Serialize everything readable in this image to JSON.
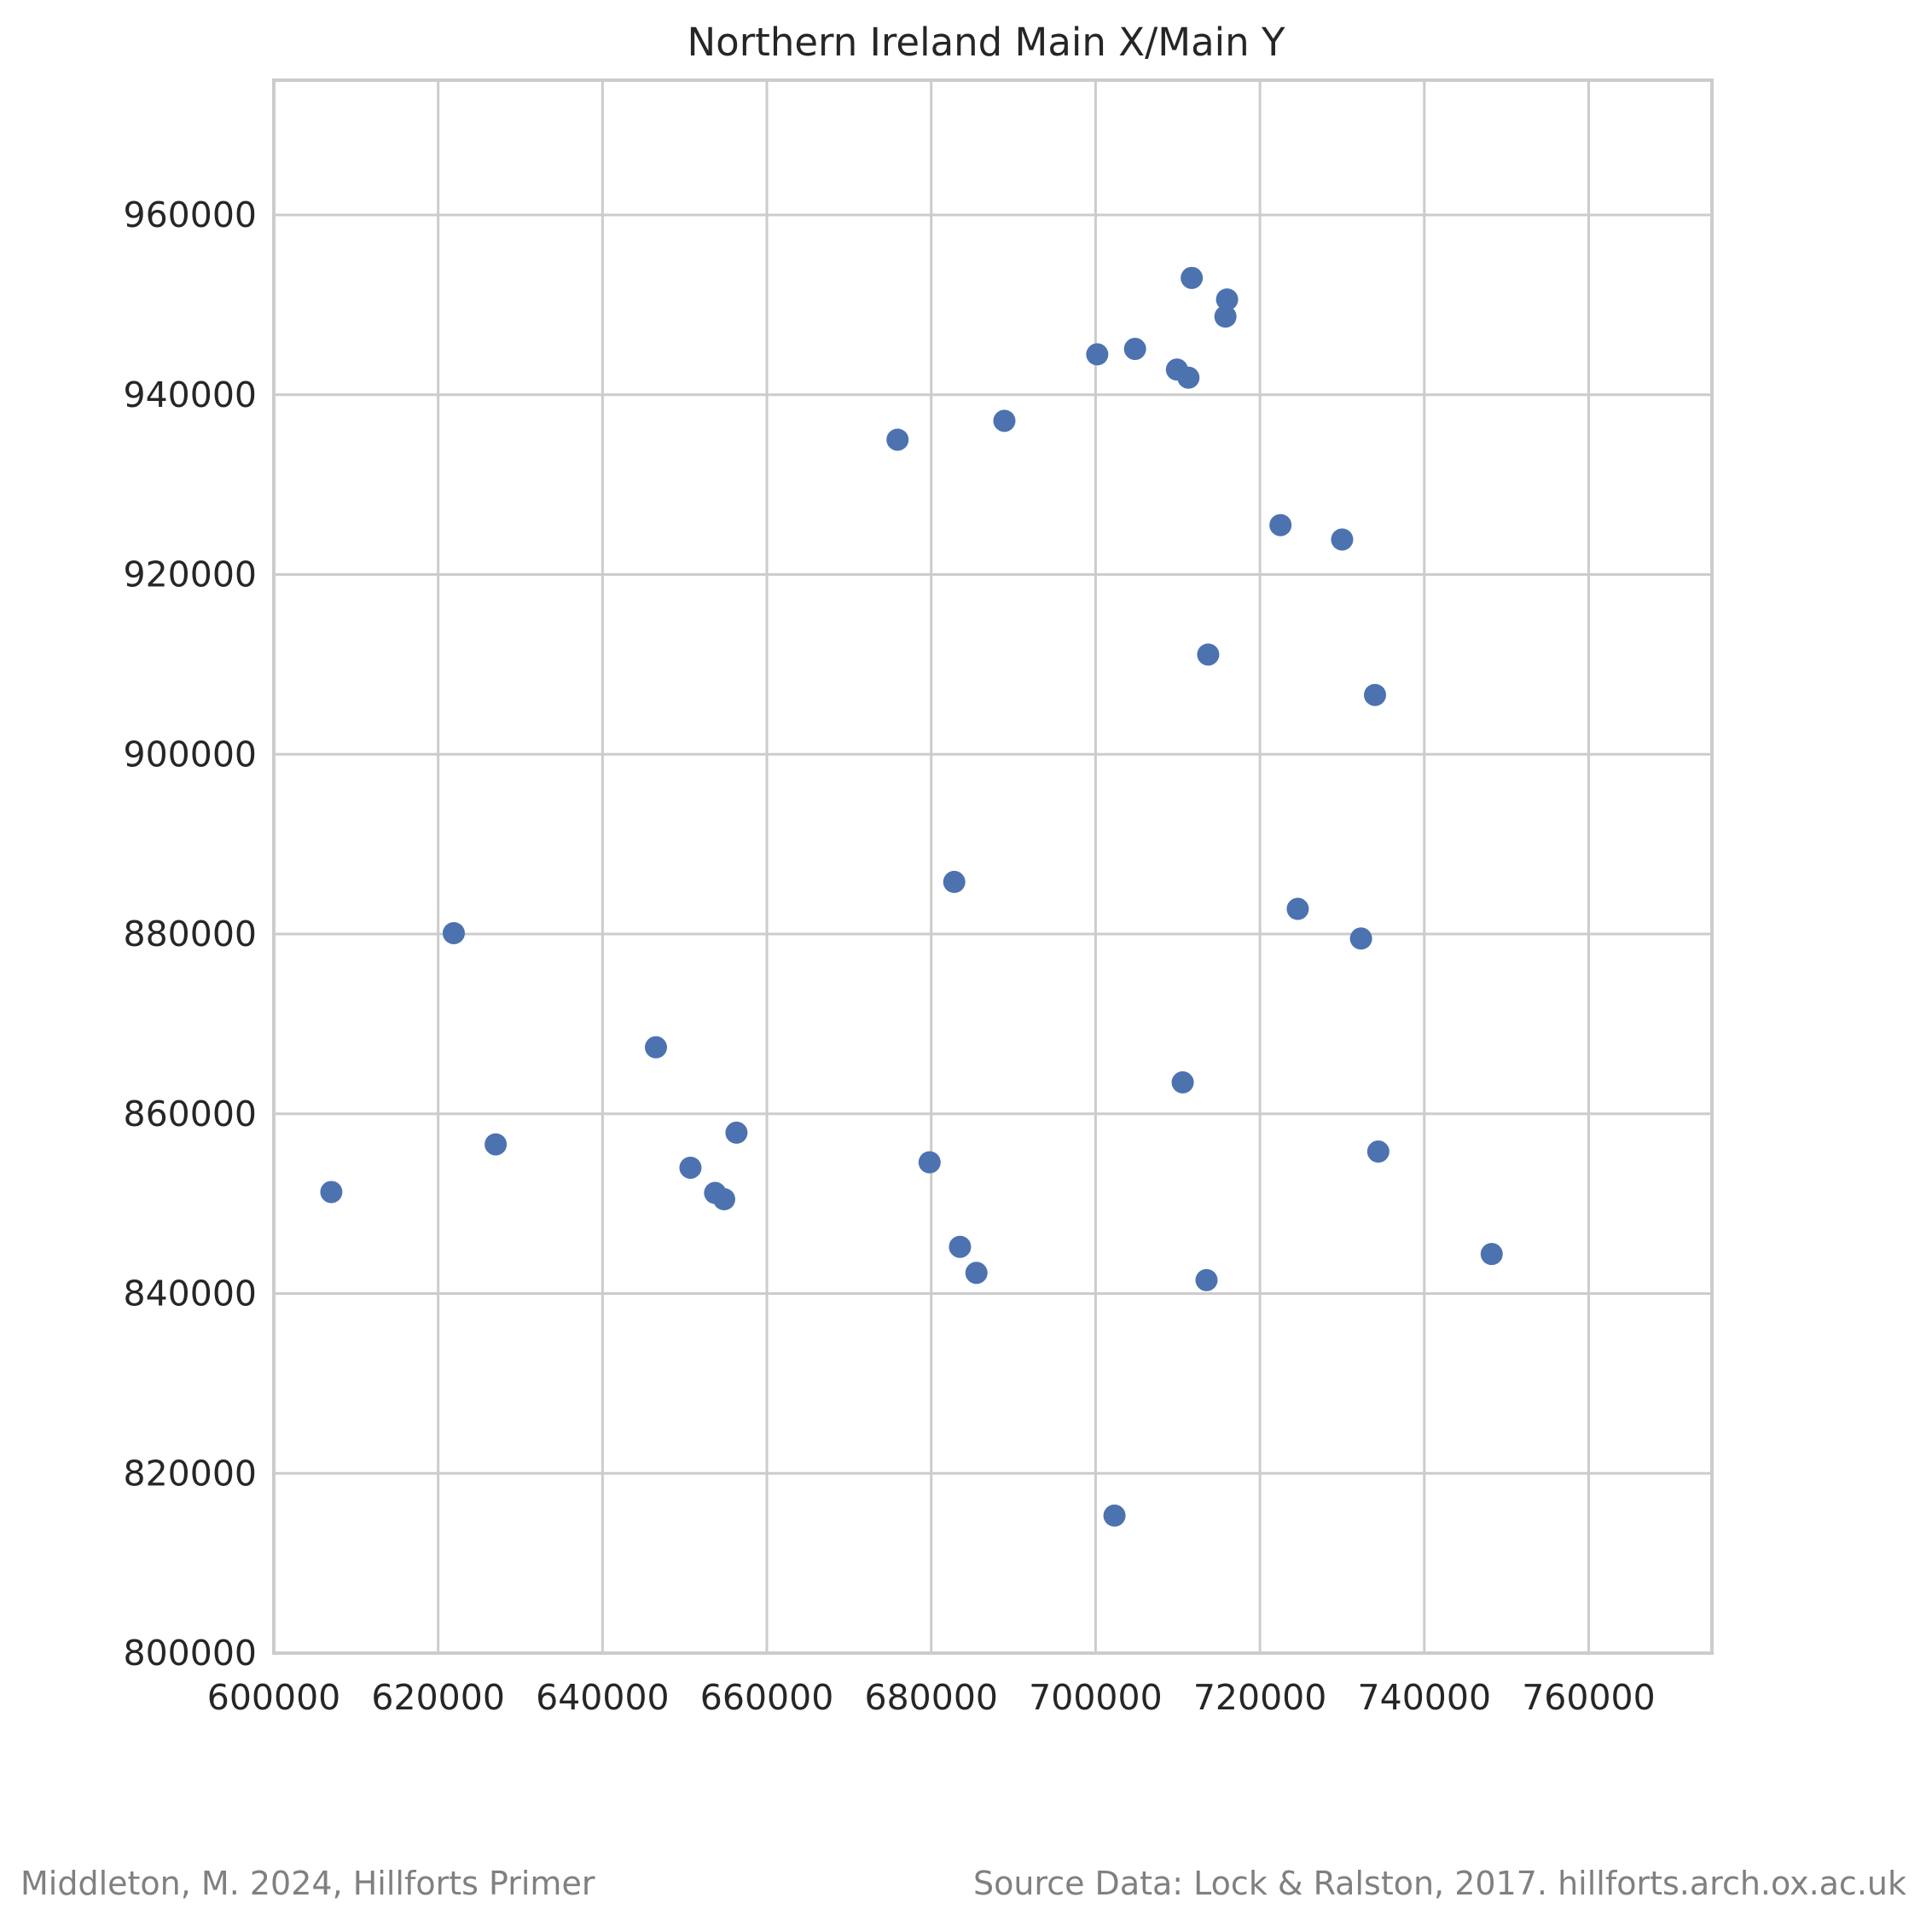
{
  "chart_data": {
    "type": "scatter",
    "title": "Northern Ireland Main X/Main Y",
    "xlabel": "",
    "ylabel": "",
    "xlim": [
      600000,
      775000
    ],
    "ylim": [
      800000,
      975000
    ],
    "xticks": [
      600000,
      620000,
      640000,
      660000,
      680000,
      700000,
      720000,
      740000,
      760000
    ],
    "yticks": [
      800000,
      820000,
      840000,
      860000,
      880000,
      900000,
      920000,
      940000,
      960000
    ],
    "xtick_labels": [
      "600000",
      "620000",
      "640000",
      "660000",
      "680000",
      "700000",
      "720000",
      "740000",
      "760000"
    ],
    "ytick_labels": [
      "800000",
      "820000",
      "840000",
      "860000",
      "880000",
      "900000",
      "920000",
      "940000",
      "960000"
    ],
    "grid": true,
    "colors": {
      "marker": "#4c72b0",
      "grid": "#cccccc",
      "frame": "#cccccc"
    },
    "points": [
      {
        "x": 711700,
        "y": 953000
      },
      {
        "x": 716000,
        "y": 950600
      },
      {
        "x": 715800,
        "y": 948700
      },
      {
        "x": 700200,
        "y": 944500
      },
      {
        "x": 704800,
        "y": 945100
      },
      {
        "x": 709900,
        "y": 942800
      },
      {
        "x": 711300,
        "y": 941900
      },
      {
        "x": 688900,
        "y": 937100
      },
      {
        "x": 675900,
        "y": 935000
      },
      {
        "x": 722500,
        "y": 925500
      },
      {
        "x": 730000,
        "y": 923900
      },
      {
        "x": 713700,
        "y": 911100
      },
      {
        "x": 734000,
        "y": 906600
      },
      {
        "x": 682800,
        "y": 885800
      },
      {
        "x": 724600,
        "y": 882800
      },
      {
        "x": 732300,
        "y": 879500
      },
      {
        "x": 621900,
        "y": 880100
      },
      {
        "x": 646500,
        "y": 867400
      },
      {
        "x": 710600,
        "y": 863500
      },
      {
        "x": 627000,
        "y": 856600
      },
      {
        "x": 656300,
        "y": 857900
      },
      {
        "x": 650700,
        "y": 854000
      },
      {
        "x": 653700,
        "y": 851200
      },
      {
        "x": 654800,
        "y": 850500
      },
      {
        "x": 679800,
        "y": 854600
      },
      {
        "x": 734400,
        "y": 855800
      },
      {
        "x": 607000,
        "y": 851300
      },
      {
        "x": 683500,
        "y": 845200
      },
      {
        "x": 685500,
        "y": 842300
      },
      {
        "x": 713500,
        "y": 841500
      },
      {
        "x": 748200,
        "y": 844400
      },
      {
        "x": 702300,
        "y": 815300
      }
    ]
  },
  "footer": {
    "left": "Middleton, M. 2024, Hillforts Primer",
    "right": "Source Data: Lock & Ralston, 2017. hillforts.arch.ox.ac.uk"
  }
}
